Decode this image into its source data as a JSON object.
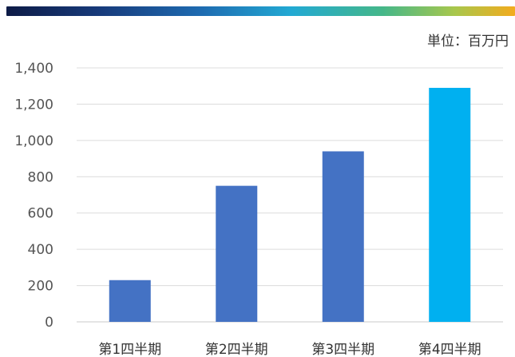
{
  "header_band": {
    "gradient": [
      "#0d1b46",
      "#173a7a",
      "#1e6ab0",
      "#22a9d3",
      "#45b789",
      "#a7c74d",
      "#f3ab1d"
    ]
  },
  "unit_label": "単位：百万円",
  "chart_data": {
    "type": "bar",
    "categories": [
      "第1四半期",
      "第2四半期",
      "第3四半期",
      "第4四半期"
    ],
    "values": [
      230,
      750,
      940,
      1290
    ],
    "colors": [
      "#4472c4",
      "#4472c4",
      "#4472c4",
      "#00b0f0"
    ],
    "title": "",
    "xlabel": "",
    "ylabel": "",
    "ylim": [
      0,
      1400
    ],
    "yticks": [
      0,
      200,
      400,
      600,
      800,
      1000,
      1200,
      1400
    ],
    "ytick_labels": [
      "0",
      "200",
      "400",
      "600",
      "800",
      "1,000",
      "1,200",
      "1,400"
    ],
    "grid": true,
    "legend": "none"
  }
}
